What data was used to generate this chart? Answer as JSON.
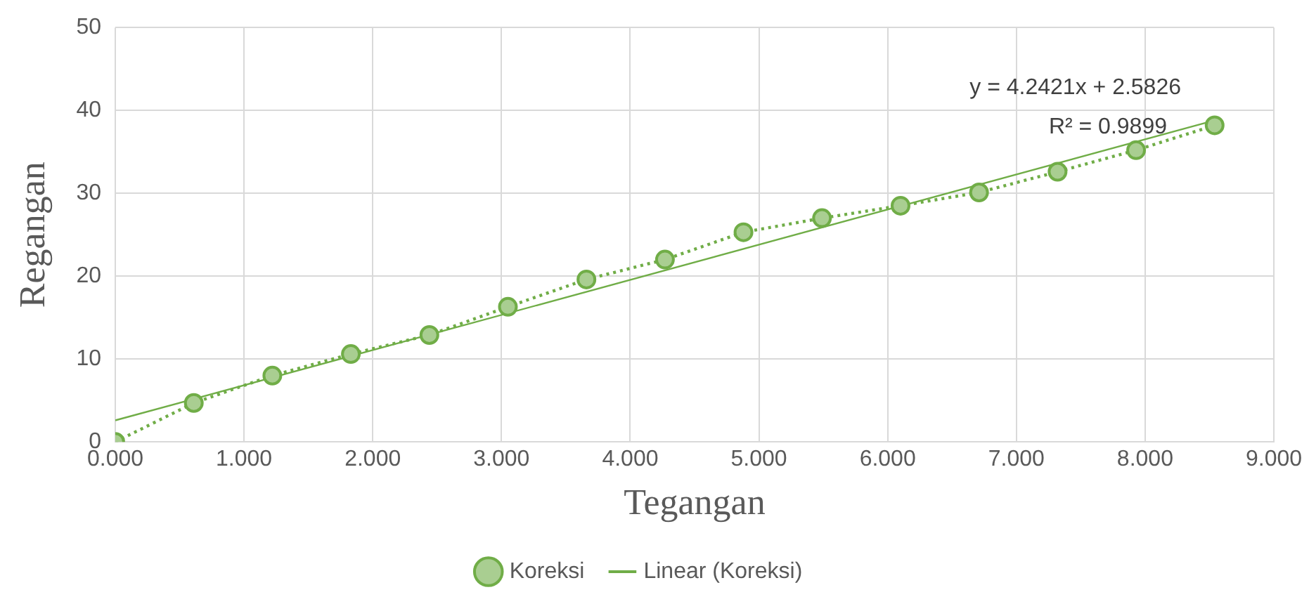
{
  "chart_data": {
    "type": "line",
    "xlabel": "Tegangan",
    "ylabel": "Regangan",
    "x": [
      0,
      0.61,
      1.22,
      1.83,
      2.44,
      3.05,
      3.66,
      4.27,
      4.88,
      5.49,
      6.1,
      6.71,
      7.32,
      7.93,
      8.54
    ],
    "series": [
      {
        "name": "Koreksi",
        "color": "#70ad47",
        "values": [
          0,
          4.7,
          8.0,
          10.6,
          12.9,
          16.3,
          19.6,
          22.0,
          25.3,
          27.0,
          28.5,
          30.1,
          32.6,
          35.2,
          38.2
        ],
        "marker": "circle",
        "line_style": "dotted"
      },
      {
        "name": "Linear (Koreksi)",
        "color": "#70ad47",
        "type": "line",
        "x": [
          0,
          8.54
        ],
        "values": [
          2.6,
          38.8
        ],
        "marker": "none",
        "line_style": "solid"
      }
    ],
    "xlim": [
      0,
      9
    ],
    "xticks": [
      {
        "value": 0,
        "label": "0.000"
      },
      {
        "value": 1,
        "label": "1.000"
      },
      {
        "value": 2,
        "label": "2.000"
      },
      {
        "value": 3,
        "label": "3.000"
      },
      {
        "value": 4,
        "label": "4.000"
      },
      {
        "value": 5,
        "label": "5.000"
      },
      {
        "value": 6,
        "label": "6.000"
      },
      {
        "value": 7,
        "label": "7.000"
      },
      {
        "value": 8,
        "label": "8.000"
      },
      {
        "value": 9,
        "label": "9.000"
      }
    ],
    "ylim": [
      0,
      50
    ],
    "yticks": [
      0,
      10,
      20,
      30,
      40,
      50
    ],
    "grid": true,
    "legend": "bottom",
    "annotations": [
      "y = 4.2421x + 2.5826",
      "R² = 0.9899"
    ]
  }
}
